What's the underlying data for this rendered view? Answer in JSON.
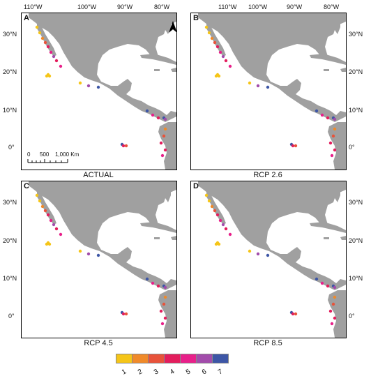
{
  "panels": [
    {
      "letter": "A",
      "caption": "ACTUAL"
    },
    {
      "letter": "B",
      "caption": "RCP 2.6"
    },
    {
      "letter": "C",
      "caption": "RCP 4.5"
    },
    {
      "letter": "D",
      "caption": "RCP 8.5"
    }
  ],
  "lon_ticks": [
    "110°W",
    "100°W",
    "90°W",
    "80°W"
  ],
  "lat_ticks_top": [
    "30°N",
    "20°N",
    "10°N",
    "0°"
  ],
  "lat_ticks_bottom": [
    "30°N",
    "20°N",
    "10°N",
    "0°"
  ],
  "scale_bar": {
    "labels": [
      "0",
      "500",
      "1,000 Km"
    ]
  },
  "north_arrow_label": "N",
  "legend": {
    "labels": [
      "1",
      "2",
      "3",
      "4",
      "5",
      "6",
      "7"
    ],
    "colors": [
      "#f5c518",
      "#f08a2a",
      "#e8533a",
      "#e31d5d",
      "#e8208a",
      "#a24cab",
      "#3d56a6"
    ]
  },
  "colors": {
    "land": "#a0a0a0",
    "ocean": "#ffffff"
  }
}
